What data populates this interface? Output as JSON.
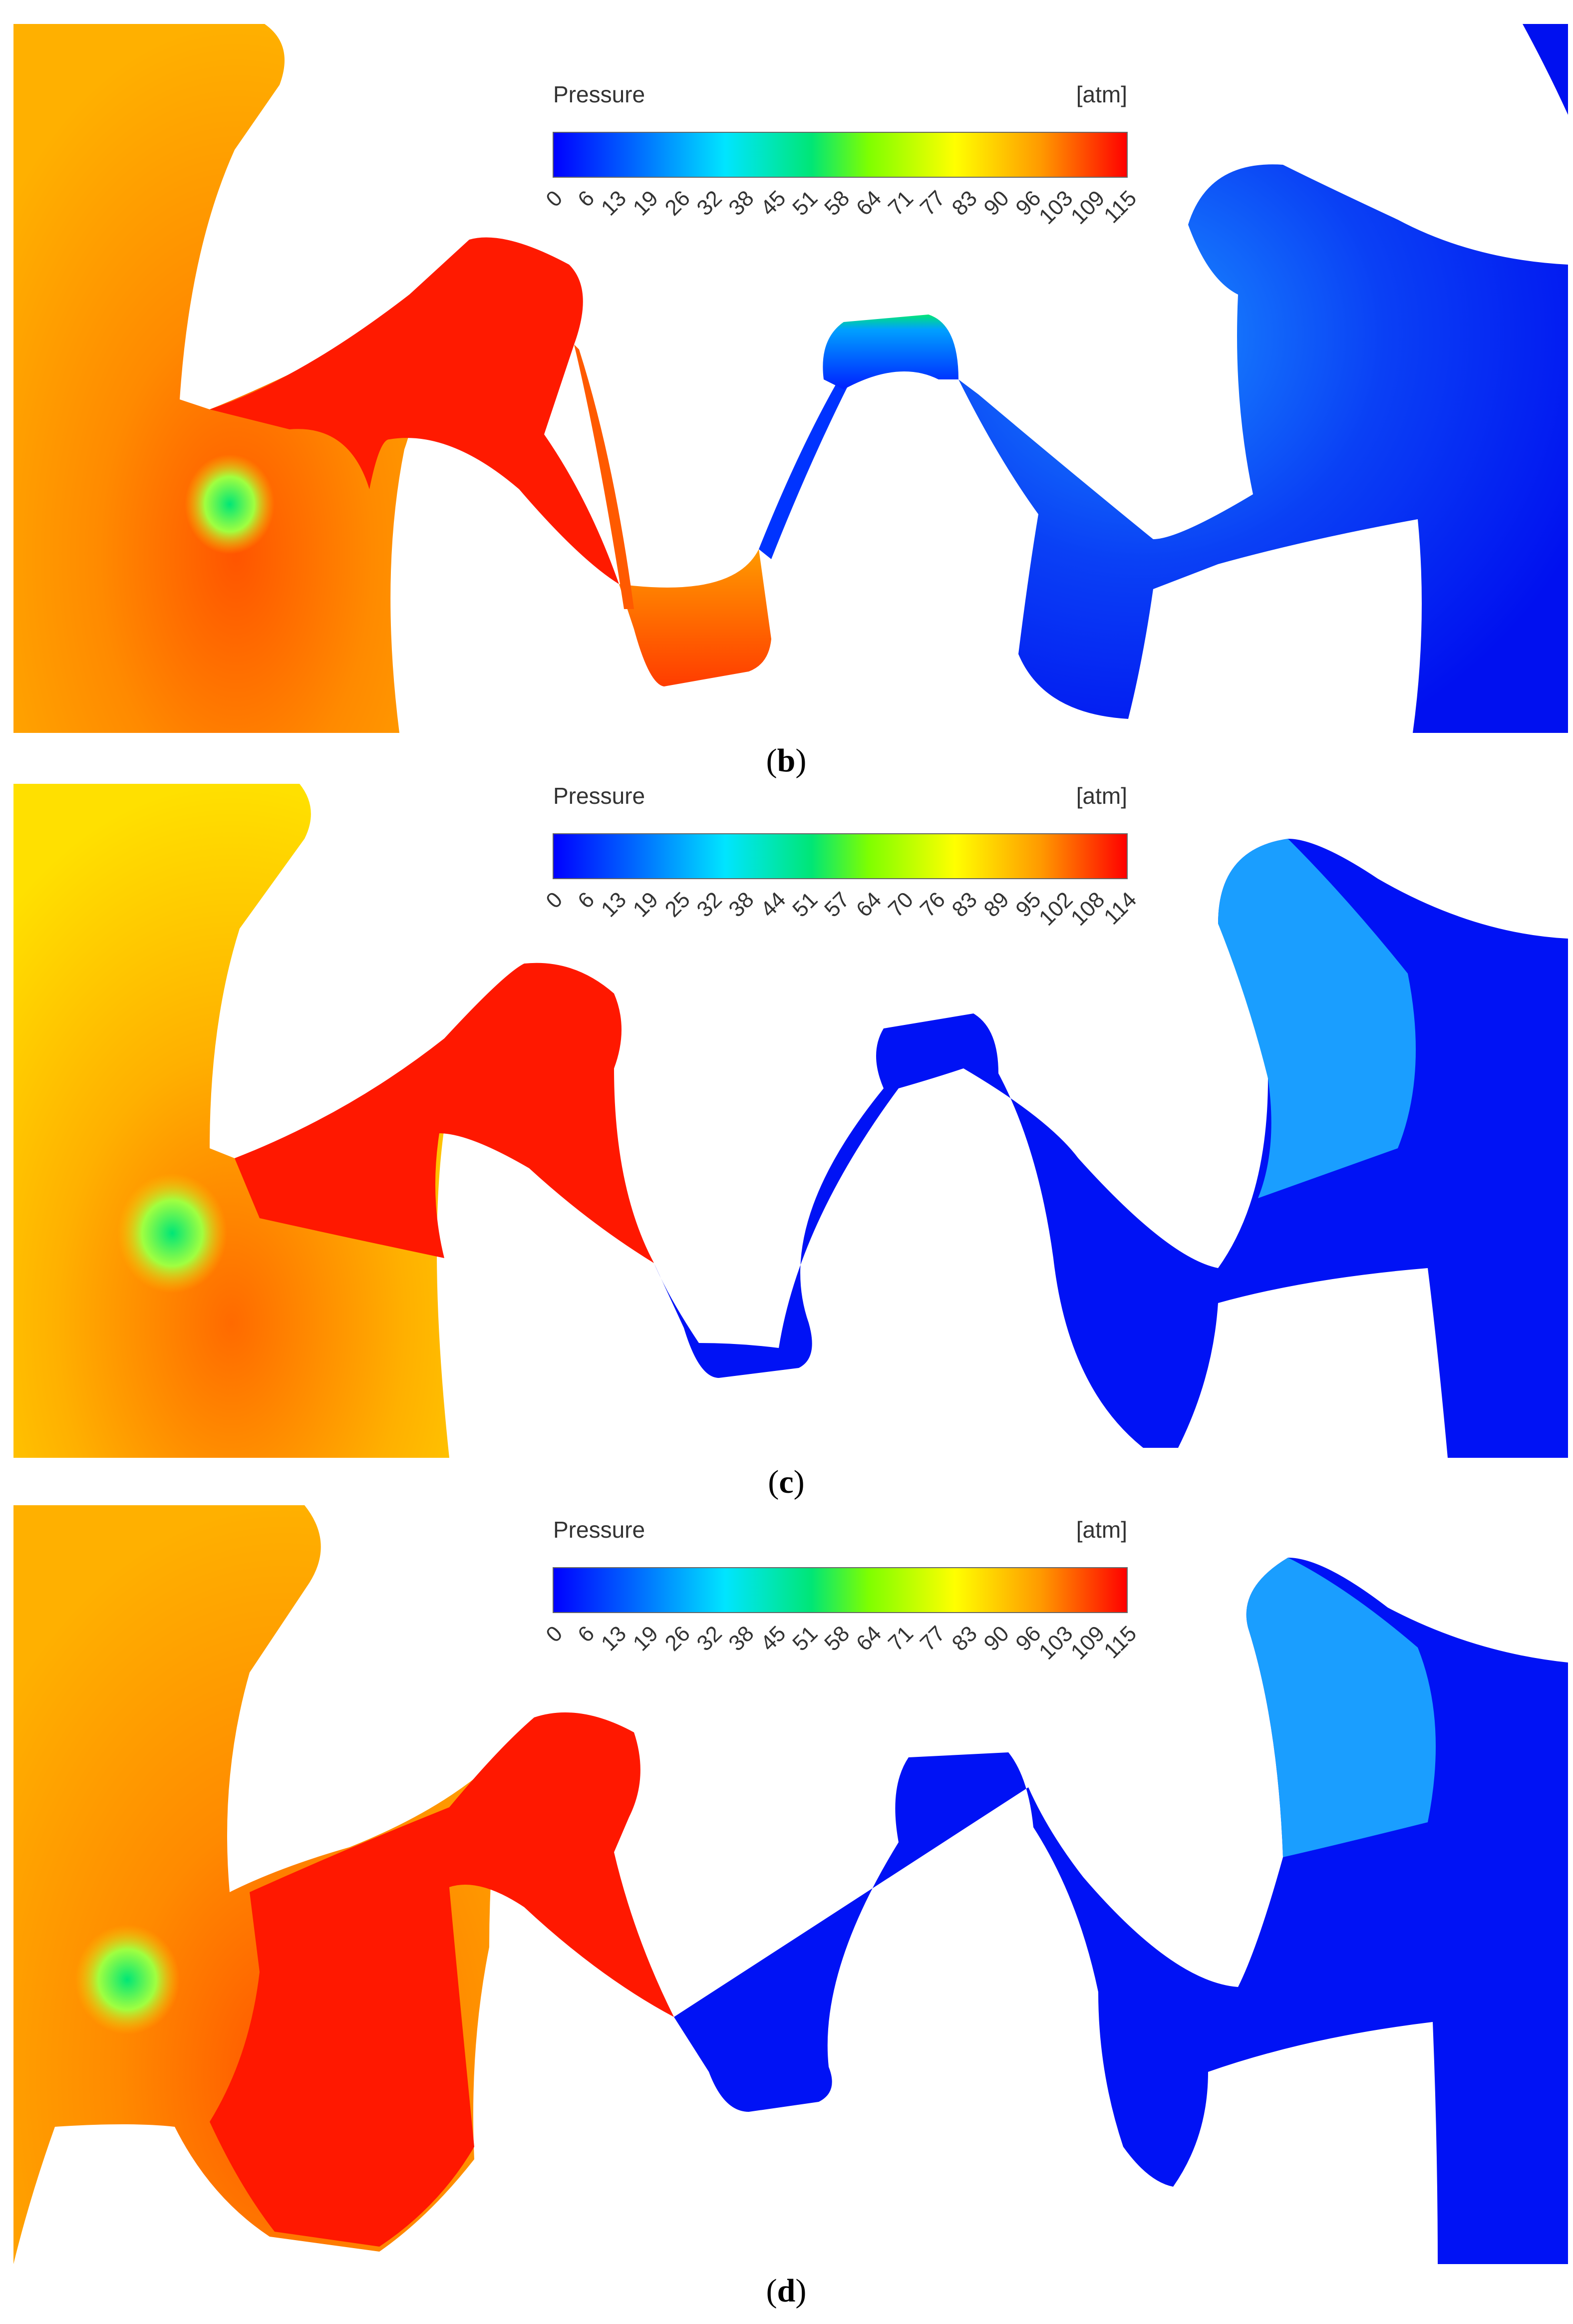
{
  "colors": {
    "scale": [
      "#0000ff",
      "#0066ff",
      "#00e5ff",
      "#00e676",
      "#7fff00",
      "#ffff00",
      "#ff9900",
      "#ff0000"
    ],
    "high": "#ff1a00",
    "high_mid": "#ff5a00",
    "mid_high": "#ffa500",
    "mid": "#ffdd00",
    "low": "#0014f5",
    "low_mid": "#1a9eff",
    "hot_spot": "#00e676"
  },
  "panels": [
    {
      "id": "b",
      "caption_open": "(",
      "caption_letter": "b",
      "caption_close": ")",
      "colorbar": {
        "title": "Pressure",
        "unit": "[atm]",
        "ticks": [
          "0",
          "6",
          "13",
          "19",
          "26",
          "32",
          "38",
          "45",
          "51",
          "58",
          "64",
          "71",
          "77",
          "83",
          "90",
          "96",
          "103",
          "109",
          "115"
        ]
      }
    },
    {
      "id": "c",
      "caption_open": "(",
      "caption_letter": "c",
      "caption_close": ")",
      "colorbar": {
        "title": "Pressure",
        "unit": "[atm]",
        "ticks": [
          "0",
          "6",
          "13",
          "19",
          "25",
          "32",
          "38",
          "44",
          "51",
          "57",
          "64",
          "70",
          "76",
          "83",
          "89",
          "95",
          "102",
          "108",
          "114"
        ]
      }
    },
    {
      "id": "d",
      "caption_open": "(",
      "caption_letter": "d",
      "caption_close": ")",
      "colorbar": {
        "title": "Pressure",
        "unit": "[atm]",
        "ticks": [
          "0",
          "6",
          "13",
          "19",
          "26",
          "32",
          "38",
          "45",
          "51",
          "58",
          "64",
          "71",
          "77",
          "83",
          "90",
          "96",
          "103",
          "109",
          "115"
        ]
      }
    }
  ]
}
